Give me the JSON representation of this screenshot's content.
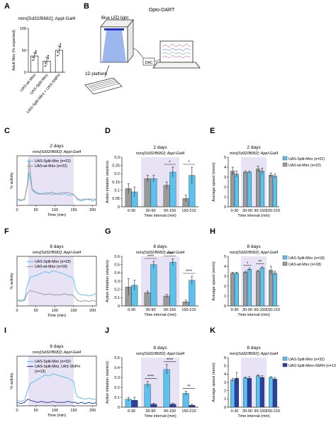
{
  "colors": {
    "split": "#5bc2ee",
    "wt": "#9a9a9a",
    "snph": "#2b3fa8",
    "shade": "#e8e2f5",
    "axis": "#222222"
  },
  "panel_letters": [
    "A",
    "B",
    "C",
    "D",
    "E",
    "F",
    "G",
    "H",
    "I",
    "J",
    "K"
  ],
  "B": {
    "title": "Opto-DART",
    "led": "Blue LED light",
    "platform": "1D platform",
    "dac": "DAC"
  },
  "chart_data": [
    {
      "id": "A",
      "type": "bar",
      "title": "miro[Sd32/B682]; Appl-Gal4",
      "ylabel": "Adult flies (% expected)",
      "categories": [
        "UAS-wt-Miro",
        "UAS-Split-Miro",
        "UAS-Split-Miro + UAS-SNPH"
      ],
      "values": [
        37,
        25,
        50
      ],
      "errors": [
        8,
        9,
        10
      ],
      "ylim": [
        0,
        100
      ],
      "yticks": [
        0,
        50,
        100
      ],
      "bar_color": "#ffffff"
    },
    {
      "id": "C",
      "type": "line",
      "title": "2 days",
      "subtitle": "miro[Sd32/B682]; Appl-Gal4",
      "xlabel": "Time (min)",
      "ylabel": "% activity",
      "xlim": [
        0,
        210
      ],
      "xticks": [
        0,
        50,
        100,
        150,
        200
      ],
      "shade": [
        30,
        150
      ],
      "legend": [
        "UAS-Split-Miro (n=22)",
        "UAS-wt-Miro (n=22)"
      ],
      "series": [
        {
          "name": "UAS-Split-Miro (n=22)",
          "color": "split",
          "x": [
            0,
            10,
            20,
            28,
            32,
            40,
            50,
            60,
            70,
            80,
            90,
            100,
            110,
            120,
            130,
            140,
            150,
            160,
            170,
            180,
            190,
            200,
            210
          ],
          "y": [
            0.05,
            0.04,
            0.06,
            0.18,
            0.3,
            0.15,
            0.12,
            0.11,
            0.1,
            0.12,
            0.1,
            0.1,
            0.11,
            0.12,
            0.1,
            0.09,
            0.1,
            0.05,
            0.04,
            0.05,
            0.06,
            0.04,
            0.05
          ]
        },
        {
          "name": "UAS-wt-Miro (n=22)",
          "color": "wt",
          "x": [
            0,
            10,
            20,
            28,
            32,
            40,
            50,
            60,
            70,
            80,
            90,
            100,
            110,
            120,
            130,
            140,
            150,
            160,
            170,
            180,
            190,
            200,
            210
          ],
          "y": [
            0.06,
            0.05,
            0.05,
            0.2,
            0.42,
            0.14,
            0.11,
            0.1,
            0.11,
            0.1,
            0.12,
            0.11,
            0.1,
            0.1,
            0.12,
            0.11,
            0.1,
            0.06,
            0.05,
            0.06,
            0.05,
            0.06,
            0.05
          ]
        }
      ]
    },
    {
      "id": "D",
      "type": "bar",
      "title": "2 days",
      "subtitle": "miro[Sd32/B682]; Appl-Gal4",
      "xlabel": "Time interval (min)",
      "ylabel": "Action initiation (starts/s)",
      "categories": [
        "0-30",
        "30-90",
        "90-150",
        "150-210"
      ],
      "ylim": [
        0,
        0.3
      ],
      "yticks": [
        0,
        0.05,
        0.1,
        0.15,
        0.2,
        0.25,
        0.3
      ],
      "series": [
        {
          "name": "UAS-wt-Miro",
          "color": "wt",
          "values": [
            0.11,
            0.17,
            0.13,
            0.05
          ],
          "errors": [
            0.03,
            0.02,
            0.02,
            0.02
          ]
        },
        {
          "name": "UAS-Split-Miro",
          "color": "split",
          "values": [
            0.09,
            0.17,
            0.21,
            0.19
          ],
          "errors": [
            0.03,
            0.02,
            0.03,
            0.05
          ]
        }
      ],
      "sig": [
        {
          "cat": 2,
          "label": "*"
        },
        {
          "cat": 3,
          "label": "*"
        }
      ]
    },
    {
      "id": "E",
      "type": "bar",
      "title": "2 days",
      "subtitle": "miro[Sd32/B682]; Appl-Gal4",
      "xlabel": "Time interval (min)",
      "ylabel": "Average speed (mm/s)",
      "categories": [
        "0-30",
        "30-90",
        "90-150",
        "150-210"
      ],
      "ylim": [
        0,
        5
      ],
      "yticks": [
        0,
        1,
        2,
        3,
        4,
        5
      ],
      "legend": [
        "UAS-Split-Miro (n=22)",
        "UAS-wt-Miro (n=22)"
      ],
      "series": [
        {
          "name": "UAS-wt-Miro (n=22)",
          "color": "wt",
          "values": [
            3.6,
            3.5,
            3.8,
            3.2
          ],
          "errors": [
            0.4,
            0.1,
            0.3,
            0.2
          ]
        },
        {
          "name": "UAS-Split-Miro (n=22)",
          "color": "split",
          "values": [
            3.3,
            3.5,
            3.6,
            3.1
          ],
          "errors": [
            0.3,
            0.1,
            0.3,
            0.2
          ]
        }
      ]
    },
    {
      "id": "F",
      "type": "line",
      "title": "8 days",
      "subtitle": "miro[Sd32/B682]; Appl-Gal4",
      "xlabel": "Time (min)",
      "ylabel": "% activity",
      "xlim": [
        0,
        210
      ],
      "xticks": [
        0,
        50,
        100,
        150,
        200
      ],
      "shade": [
        30,
        150
      ],
      "legend": [
        "UAS-Split-Miro (n=18)",
        "UAS-wt-Miro (n=18)"
      ],
      "series": [
        {
          "name": "UAS-Split-Miro (n=18)",
          "color": "split",
          "x": [
            0,
            10,
            20,
            28,
            35,
            45,
            55,
            65,
            75,
            85,
            95,
            105,
            115,
            125,
            135,
            145,
            150,
            155,
            160,
            170,
            180,
            190,
            200,
            210
          ],
          "y": [
            0.06,
            0.05,
            0.06,
            0.2,
            0.26,
            0.27,
            0.28,
            0.3,
            0.31,
            0.3,
            0.32,
            0.31,
            0.3,
            0.29,
            0.27,
            0.26,
            0.24,
            0.15,
            0.12,
            0.1,
            0.1,
            0.09,
            0.1,
            0.11
          ]
        },
        {
          "name": "UAS-wt-Miro (n=18)",
          "color": "wt",
          "x": [
            0,
            10,
            20,
            28,
            35,
            45,
            55,
            65,
            75,
            85,
            95,
            105,
            115,
            125,
            135,
            145,
            150,
            155,
            160,
            170,
            180,
            190,
            200,
            210
          ],
          "y": [
            0.05,
            0.04,
            0.05,
            0.12,
            0.14,
            0.13,
            0.12,
            0.11,
            0.1,
            0.11,
            0.1,
            0.1,
            0.1,
            0.11,
            0.1,
            0.1,
            0.09,
            0.07,
            0.05,
            0.04,
            0.05,
            0.04,
            0.05,
            0.04
          ]
        }
      ]
    },
    {
      "id": "G",
      "type": "bar",
      "title": "8 days",
      "subtitle": "miro[Sd32/B682]; Appl-Gal4",
      "xlabel": "Time interval (min)",
      "ylabel": "Action initiation (starts/s)",
      "categories": [
        "0-30",
        "30-90",
        "90-150",
        "150-210"
      ],
      "ylim": [
        0,
        0.6
      ],
      "yticks": [
        0,
        0.1,
        0.2,
        0.3,
        0.4,
        0.5,
        0.6
      ],
      "series": [
        {
          "name": "UAS-wt-Miro",
          "color": "wt",
          "values": [
            0.23,
            0.16,
            0.12,
            0.05
          ],
          "errors": [
            0.1,
            0.02,
            0.02,
            0.02
          ]
        },
        {
          "name": "UAS-Split-Miro",
          "color": "split",
          "values": [
            0.25,
            0.5,
            0.53,
            0.31
          ],
          "errors": [
            0.06,
            0.04,
            0.04,
            0.05
          ]
        }
      ],
      "sig": [
        {
          "cat": 1,
          "label": "****"
        },
        {
          "cat": 2,
          "label": "****"
        },
        {
          "cat": 3,
          "label": "****"
        }
      ]
    },
    {
      "id": "H",
      "type": "bar",
      "title": "8 days",
      "subtitle": "miro[Sd32/B682]; Appl-Gal4",
      "xlabel": "Time interval (min)",
      "ylabel": "Average speed (mm/s)",
      "categories": [
        "0-30",
        "30-90",
        "90-150",
        "150-210"
      ],
      "ylim": [
        0,
        5
      ],
      "yticks": [
        0,
        1,
        2,
        3,
        4,
        5
      ],
      "legend": [
        "UAS-Split-Miro (n=18)",
        "UAS-wt-Miro (n=18)"
      ],
      "series": [
        {
          "name": "UAS-wt-Miro (n=18)",
          "color": "wt",
          "values": [
            3.3,
            3.4,
            3.5,
            3.6
          ],
          "errors": [
            0.1,
            0.1,
            0.1,
            0.4
          ]
        },
        {
          "name": "UAS-Split-Miro (n=18)",
          "color": "split",
          "values": [
            3.3,
            3.7,
            3.85,
            3.3
          ],
          "errors": [
            0.1,
            0.1,
            0.1,
            0.2
          ]
        }
      ],
      "sig": [
        {
          "cat": 1,
          "label": "*"
        },
        {
          "cat": 2,
          "label": "**"
        }
      ]
    },
    {
      "id": "I",
      "type": "line",
      "title": "8 days",
      "subtitle": "miro[Sd32/B682]; Appl-Gal4",
      "xlabel": "Time (min)",
      "ylabel": "% activity",
      "xlim": [
        0,
        210
      ],
      "xticks": [
        0,
        50,
        100,
        150,
        200
      ],
      "shade": [
        30,
        150
      ],
      "legend": [
        "UAS-Split-Miro (n=32)",
        "UAS-Split-Miro, UAS-SNPH",
        "(n=13)"
      ],
      "series": [
        {
          "name": "UAS-Split-Miro (n=32)",
          "color": "split",
          "x": [
            0,
            10,
            20,
            28,
            35,
            45,
            55,
            65,
            75,
            85,
            95,
            105,
            115,
            125,
            135,
            145,
            150,
            155,
            160,
            170,
            180,
            190,
            200,
            210
          ],
          "y": [
            0.05,
            0.04,
            0.05,
            0.14,
            0.2,
            0.22,
            0.24,
            0.26,
            0.28,
            0.27,
            0.29,
            0.28,
            0.27,
            0.26,
            0.25,
            0.23,
            0.22,
            0.12,
            0.08,
            0.07,
            0.06,
            0.07,
            0.06,
            0.06
          ]
        },
        {
          "name": "UAS-Split-Miro, UAS-SNPH (n=13)",
          "color": "snph",
          "x": [
            0,
            10,
            20,
            28,
            35,
            45,
            55,
            65,
            75,
            85,
            95,
            105,
            115,
            125,
            135,
            145,
            150,
            155,
            160,
            170,
            180,
            190,
            200,
            210
          ],
          "y": [
            0.03,
            0.02,
            0.03,
            0.06,
            0.05,
            0.04,
            0.03,
            0.04,
            0.03,
            0.03,
            0.04,
            0.03,
            0.03,
            0.03,
            0.04,
            0.03,
            0.03,
            0.03,
            0.02,
            0.03,
            0.02,
            0.03,
            0.02,
            0.03
          ]
        }
      ]
    },
    {
      "id": "J",
      "type": "bar",
      "title": "8 days",
      "subtitle": "miro[Sd32/B682]; Appl-Gal4",
      "xlabel": "Time interval (min)",
      "ylabel": "Action initiation (starts/s)",
      "categories": [
        "0-30",
        "30-90",
        "90-150",
        "150-210"
      ],
      "ylim": [
        0,
        0.5
      ],
      "yticks": [
        0,
        0.1,
        0.2,
        0.3,
        0.4,
        0.5
      ],
      "series": [
        {
          "name": "UAS-Split-Miro",
          "color": "split",
          "values": [
            0.08,
            0.23,
            0.38,
            0.14
          ],
          "errors": [
            0.02,
            0.03,
            0.05,
            0.02
          ]
        },
        {
          "name": "UAS-Split-Miro+SNPH",
          "color": "snph",
          "values": [
            0.07,
            0.03,
            0.03,
            0.02
          ],
          "errors": [
            0.03,
            0.01,
            0.01,
            0.01
          ]
        }
      ],
      "sig": [
        {
          "cat": 1,
          "label": "****"
        },
        {
          "cat": 2,
          "label": "****"
        },
        {
          "cat": 3,
          "label": "**"
        }
      ]
    },
    {
      "id": "K",
      "type": "bar",
      "title": "8 days",
      "subtitle": "miro[Sd32/B682]; Appl-Gal4",
      "xlabel": "Time interval (min)",
      "ylabel": "Average speed (mm/s)",
      "categories": [
        "0-30",
        "30-90",
        "90-150",
        "150-210"
      ],
      "ylim": [
        0,
        6
      ],
      "yticks": [
        0,
        1,
        2,
        3,
        4,
        5,
        6
      ],
      "legend": [
        "UAS-Split-Miro (n=32)",
        "UAS-Split-Miro+SNPH (n=13)"
      ],
      "series": [
        {
          "name": "UAS-Split-Miro (n=32)",
          "color": "split",
          "values": [
            3.3,
            3.55,
            3.8,
            3.6
          ],
          "errors": [
            0.2,
            0.1,
            0.1,
            0.1
          ]
        },
        {
          "name": "UAS-Split-Miro+SNPH (n=13)",
          "color": "snph",
          "values": [
            3.5,
            3.5,
            3.6,
            3.4
          ],
          "errors": [
            0.7,
            0.2,
            0.2,
            0.2
          ]
        }
      ]
    }
  ]
}
